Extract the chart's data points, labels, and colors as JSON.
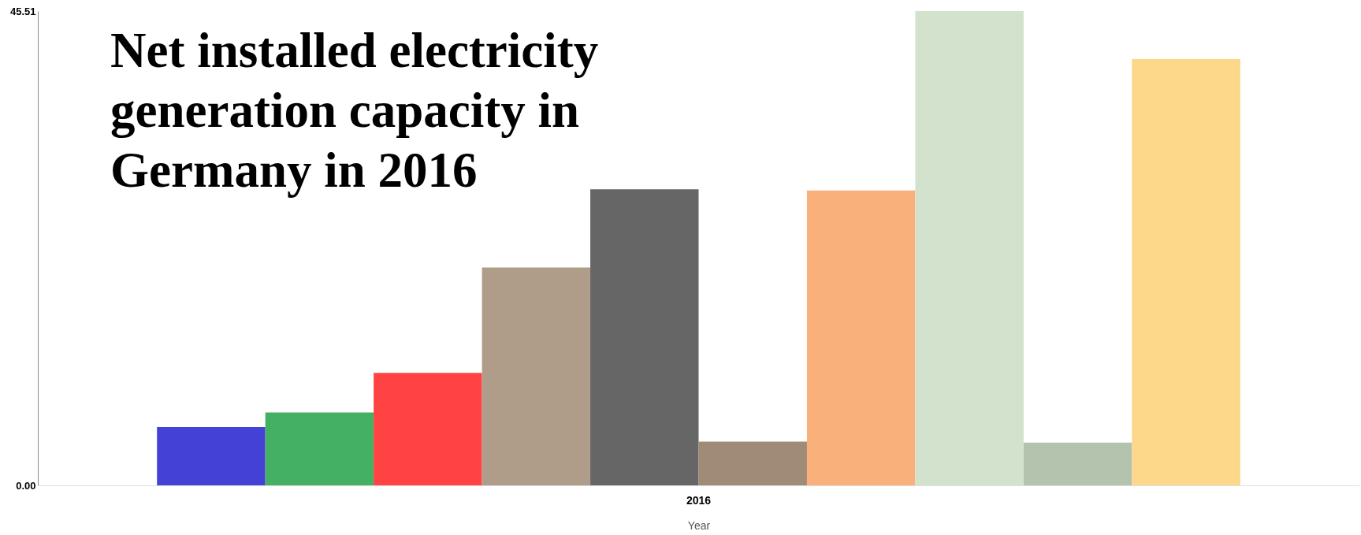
{
  "chart_data": {
    "type": "bar",
    "title": "Net installed electricity generation capacity in Germany in 2016",
    "xlabel": "Year",
    "categories": [
      "2016"
    ],
    "series": [
      {
        "color": "#4341d6",
        "values": [
          5.6
        ]
      },
      {
        "color": "#43b064",
        "values": [
          7.0
        ]
      },
      {
        "color": "#ff4242",
        "values": [
          10.8
        ]
      },
      {
        "color": "#b09d89",
        "values": [
          20.9
        ]
      },
      {
        "color": "#666666",
        "values": [
          28.4
        ]
      },
      {
        "color": "#9f8b77",
        "values": [
          4.2
        ]
      },
      {
        "color": "#f9b07a",
        "values": [
          28.3
        ]
      },
      {
        "color": "#d3e2cc",
        "values": [
          45.51
        ]
      },
      {
        "color": "#b3c3ad",
        "values": [
          4.1
        ]
      },
      {
        "color": "#fdd78a",
        "values": [
          40.9
        ]
      }
    ],
    "ylim": [
      0,
      45.51
    ],
    "yticks": [
      {
        "value": 0,
        "label": "0.00"
      },
      45.51
    ],
    "grid": false,
    "legend": false
  }
}
